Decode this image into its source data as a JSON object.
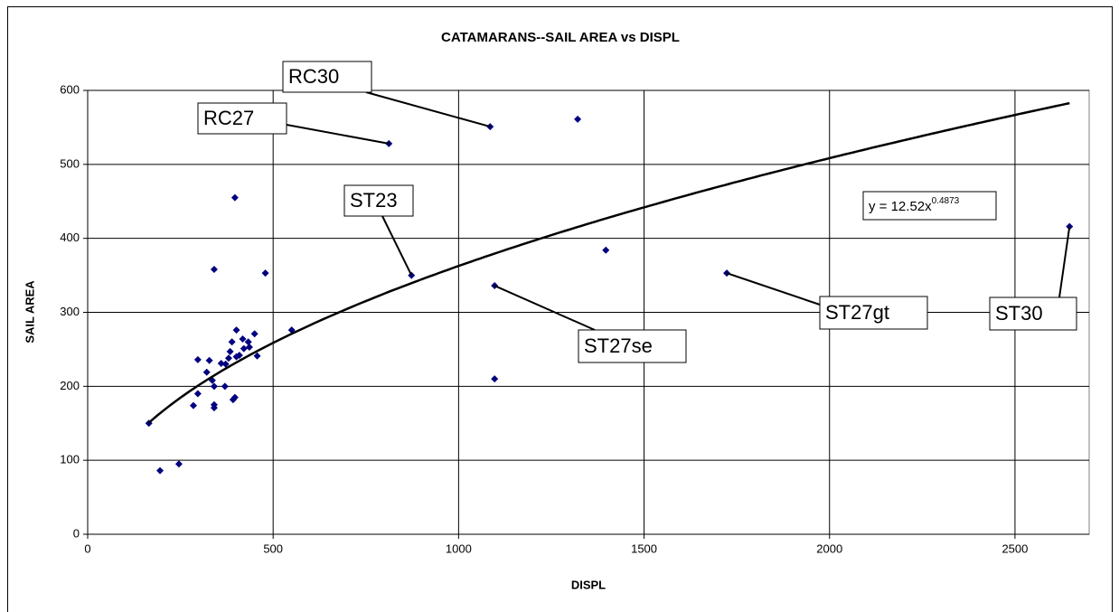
{
  "chart_data": {
    "type": "scatter",
    "title": "CATAMARANS--SAIL AREA vs DISPL",
    "x_label": "DISPL",
    "y_label": "SAIL AREA",
    "xlim": [
      0,
      2700
    ],
    "ylim": [
      0,
      600
    ],
    "xticks": [
      0,
      500,
      1000,
      1500,
      2000,
      2500
    ],
    "yticks": [
      0,
      100,
      200,
      300,
      400,
      500,
      600
    ],
    "grid": true,
    "series": [
      {
        "color": "#000080",
        "x": [
          165,
          195,
          246,
          285,
          297,
          297,
          321,
          328,
          336,
          341,
          341,
          341,
          341,
          360,
          370,
          372,
          380,
          384,
          389,
          392,
          397,
          397,
          401,
          401,
          409,
          418,
          421,
          433,
          436,
          450,
          457,
          479,
          550,
          812,
          1085,
          873,
          1097,
          1097,
          1321,
          1397,
          1723,
          2647
        ],
        "values": [
          150,
          86,
          95,
          174,
          236,
          190,
          219,
          235,
          208,
          200,
          175,
          171,
          358,
          231,
          200,
          230,
          238,
          247,
          260,
          182,
          185,
          455,
          276,
          240,
          242,
          264,
          251,
          260,
          253,
          271,
          241,
          353,
          276,
          528,
          551,
          350,
          336,
          210,
          561,
          384,
          353,
          416
        ]
      }
    ],
    "trendline": {
      "type": "power",
      "coefficient": 12.52,
      "exponent": 0.4873,
      "color": "#000000",
      "label": "y = 12.52x",
      "exponent_label": "0.4873"
    },
    "annotations": [
      "RC30",
      "RC27",
      "ST23",
      "ST27se",
      "ST27gt",
      "ST30"
    ]
  }
}
